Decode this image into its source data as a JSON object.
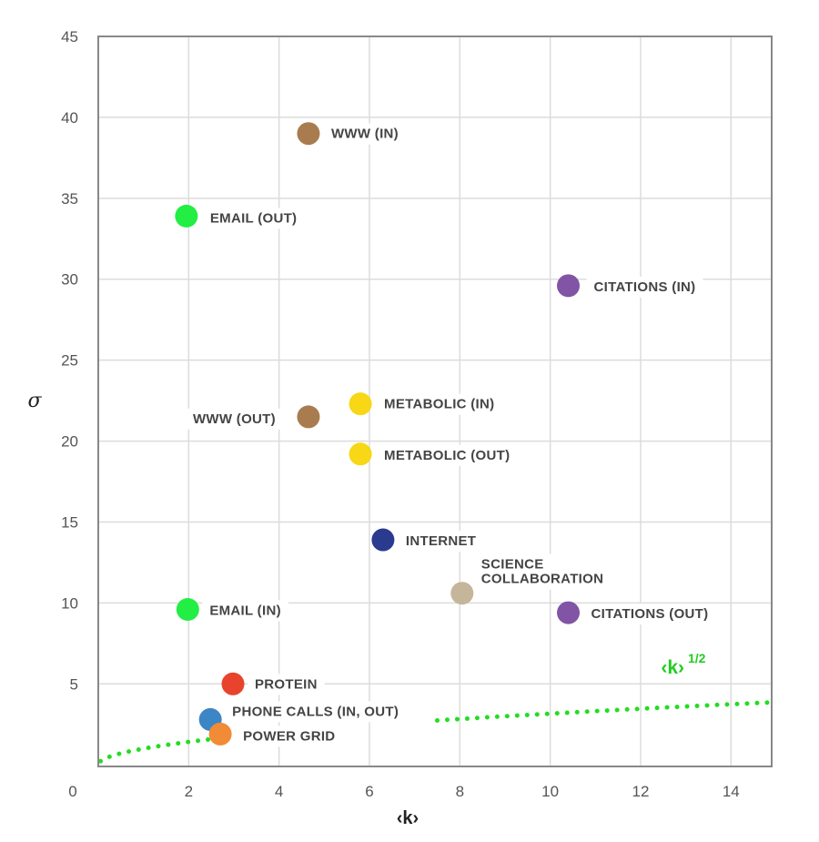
{
  "chart_data": {
    "type": "scatter",
    "xlabel": "‹k›",
    "ylabel": "σ",
    "xlim": [
      0,
      14.9
    ],
    "ylim": [
      -0.1,
      45
    ],
    "x_ticks": [
      0,
      2,
      4,
      6,
      8,
      10,
      12,
      14
    ],
    "y_ticks": [
      5,
      10,
      15,
      20,
      25,
      30,
      35,
      40,
      45
    ],
    "grid": true,
    "points": [
      {
        "label": "WWW (IN)",
        "x": 4.65,
        "y": 39.0,
        "color": "#a87c4f"
      },
      {
        "label": "EMAIL (OUT)",
        "x": 1.95,
        "y": 33.9,
        "color": "#22ee44"
      },
      {
        "label": "CITATIONS (IN)",
        "x": 10.4,
        "y": 29.6,
        "color": "#8154a6"
      },
      {
        "label": "METABOLIC (IN)",
        "x": 5.8,
        "y": 22.3,
        "color": "#f7d716"
      },
      {
        "label": "WWW (OUT)",
        "x": 4.65,
        "y": 21.5,
        "color": "#a87c4f"
      },
      {
        "label": "METABOLIC (OUT)",
        "x": 5.8,
        "y": 19.2,
        "color": "#f7d716"
      },
      {
        "label": "INTERNET",
        "x": 6.3,
        "y": 13.9,
        "color": "#2a3a8f"
      },
      {
        "label": "SCIENCE COLLABORATION",
        "x": 8.05,
        "y": 10.6,
        "color": "#c5b59a"
      },
      {
        "label": "EMAIL (IN)",
        "x": 1.98,
        "y": 9.6,
        "color": "#22ee44"
      },
      {
        "label": "CITATIONS (OUT)",
        "x": 10.4,
        "y": 9.4,
        "color": "#8154a6"
      },
      {
        "label": "PROTEIN",
        "x": 2.98,
        "y": 5.0,
        "color": "#e8432d"
      },
      {
        "label": "PHONE CALLS (IN, OUT)",
        "x": 2.48,
        "y": 2.8,
        "color": "#3d86c6"
      },
      {
        "label": "POWER GRID",
        "x": 2.7,
        "y": 1.9,
        "color": "#f28b35"
      }
    ],
    "curve": {
      "formula": "sqrt(k)",
      "label_base": "‹k›",
      "label_exp": "1/2",
      "color": "#22dd22"
    }
  },
  "x_origin_label": "0"
}
